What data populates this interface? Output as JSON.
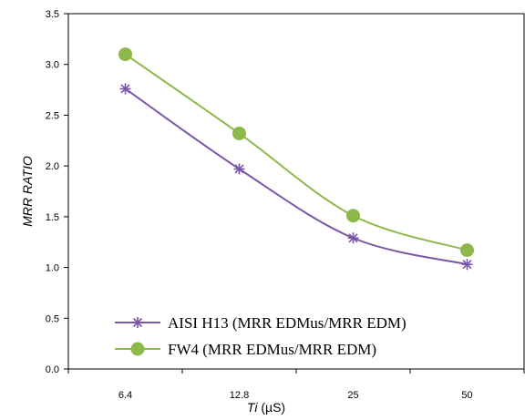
{
  "chart_data": {
    "type": "line",
    "categories": [
      "6.4",
      "12.8",
      "25",
      "50"
    ],
    "ylim": [
      0,
      3.5
    ],
    "yticks": [
      "0.0",
      "0.5",
      "1.0",
      "1.5",
      "2.0",
      "2.5",
      "3.0",
      "3.5"
    ],
    "ylabel": "MRR  RATIO",
    "xlabel_italic": "Ti",
    "xlabel_rest": " (µS)",
    "grid": false,
    "legend_position": "bottom-right",
    "series": [
      {
        "name": "AISI H13 (MRR EDMus/MRR EDM)",
        "values": [
          2.76,
          1.97,
          1.29,
          1.03
        ],
        "color": "#7B57A8",
        "marker": "asterisk"
      },
      {
        "name": "FW4 (MRR EDMus/MRR EDM)",
        "values": [
          3.1,
          2.32,
          1.51,
          1.17
        ],
        "color": "#8DB84A",
        "marker": "circle"
      }
    ]
  }
}
